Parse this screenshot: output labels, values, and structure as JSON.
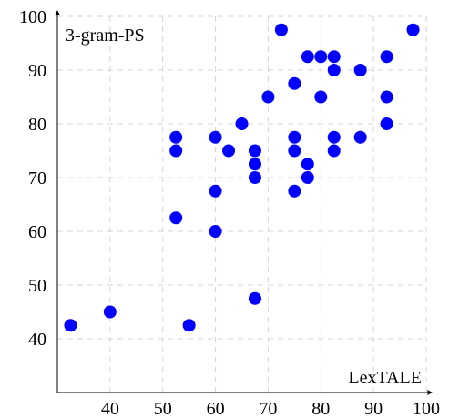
{
  "chart_data": {
    "type": "scatter",
    "xlabel": "LexTALE",
    "ylabel": "3-gram-PS",
    "xlim": [
      30,
      100
    ],
    "ylim": [
      30,
      100
    ],
    "xticks": [
      40,
      50,
      60,
      70,
      80,
      90,
      100
    ],
    "yticks": [
      40,
      50,
      60,
      70,
      80,
      90,
      100
    ],
    "grid": true,
    "marker_color": "#0000ff",
    "series": [
      {
        "points": [
          [
            32.5,
            42.5
          ],
          [
            40,
            45
          ],
          [
            55,
            42.5
          ],
          [
            67.5,
            47.5
          ],
          [
            52.5,
            62.5
          ],
          [
            60,
            60
          ],
          [
            60,
            67.5
          ],
          [
            52.5,
            75
          ],
          [
            52.5,
            77.5
          ],
          [
            60,
            77.5
          ],
          [
            62.5,
            75
          ],
          [
            65,
            80
          ],
          [
            67.5,
            75
          ],
          [
            67.5,
            72.5
          ],
          [
            67.5,
            70
          ],
          [
            70,
            85
          ],
          [
            72.5,
            97.5
          ],
          [
            75,
            87.5
          ],
          [
            75,
            77.5
          ],
          [
            75,
            75
          ],
          [
            75,
            67.5
          ],
          [
            77.5,
            92.5
          ],
          [
            77.5,
            72.5
          ],
          [
            77.5,
            70
          ],
          [
            80,
            92.5
          ],
          [
            80,
            85
          ],
          [
            82.5,
            92.5
          ],
          [
            82.5,
            90
          ],
          [
            82.5,
            77.5
          ],
          [
            82.5,
            75
          ],
          [
            87.5,
            90
          ],
          [
            87.5,
            77.5
          ],
          [
            92.5,
            92.5
          ],
          [
            92.5,
            85
          ],
          [
            92.5,
            80
          ],
          [
            97.5,
            97.5
          ]
        ]
      }
    ]
  }
}
